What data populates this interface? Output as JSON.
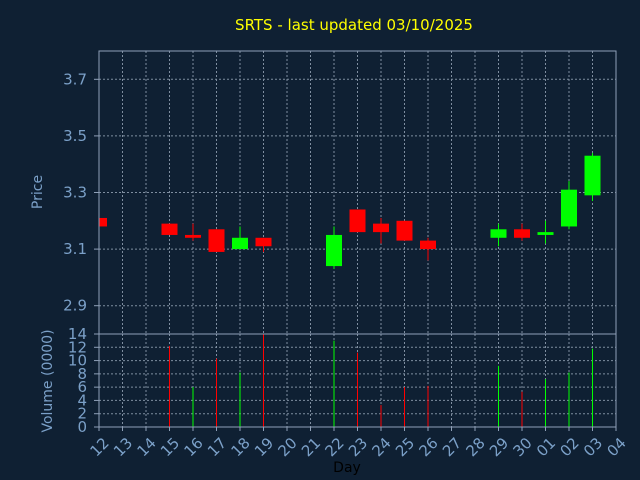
{
  "chart_data": [
    {
      "type": "candlestick",
      "title": "SRTS - last updated 03/10/2025",
      "ylabel": "Price",
      "ylim": [
        2.8,
        3.8
      ],
      "yticks": [
        "2.9",
        "3.1",
        "3.3",
        "3.5",
        "3.7"
      ],
      "grid": true,
      "x_tick_labels": [
        "12",
        "13",
        "14",
        "15",
        "16",
        "17",
        "18",
        "19",
        "20",
        "21",
        "22",
        "23",
        "24",
        "25",
        "26",
        "27",
        "28",
        "29",
        "30",
        "01",
        "02",
        "03",
        "04"
      ],
      "candles": [
        {
          "x": "12",
          "open": 3.21,
          "high": 3.21,
          "low": 3.18,
          "close": 3.18
        },
        {
          "x": "15",
          "open": 3.19,
          "high": 3.19,
          "low": 3.15,
          "close": 3.15
        },
        {
          "x": "16",
          "open": 3.15,
          "high": 3.19,
          "low": 3.13,
          "close": 3.14
        },
        {
          "x": "17",
          "open": 3.17,
          "high": 3.17,
          "low": 3.09,
          "close": 3.09
        },
        {
          "x": "18",
          "open": 3.1,
          "high": 3.18,
          "low": 3.1,
          "close": 3.14
        },
        {
          "x": "19",
          "open": 3.14,
          "high": 3.14,
          "low": 3.09,
          "close": 3.11
        },
        {
          "x": "22",
          "open": 3.04,
          "high": 3.18,
          "low": 3.03,
          "close": 3.15
        },
        {
          "x": "23",
          "open": 3.24,
          "high": 3.24,
          "low": 3.16,
          "close": 3.16
        },
        {
          "x": "24",
          "open": 3.19,
          "high": 3.21,
          "low": 3.12,
          "close": 3.16
        },
        {
          "x": "25",
          "open": 3.2,
          "high": 3.2,
          "low": 3.13,
          "close": 3.13
        },
        {
          "x": "26",
          "open": 3.13,
          "high": 3.14,
          "low": 3.06,
          "close": 3.1
        },
        {
          "x": "29",
          "open": 3.14,
          "high": 3.19,
          "low": 3.11,
          "close": 3.17
        },
        {
          "x": "30",
          "open": 3.17,
          "high": 3.19,
          "low": 3.13,
          "close": 3.14
        },
        {
          "x": "01",
          "open": 3.15,
          "high": 3.2,
          "low": 3.12,
          "close": 3.16
        },
        {
          "x": "02",
          "open": 3.18,
          "high": 3.34,
          "low": 3.17,
          "close": 3.31
        },
        {
          "x": "03",
          "open": 3.29,
          "high": 3.44,
          "low": 3.27,
          "close": 3.43
        }
      ]
    },
    {
      "type": "bar",
      "ylabel": "Volume (0000)",
      "xlabel": "Day",
      "ylim": [
        0,
        14
      ],
      "yticks": [
        "0",
        "2",
        "4",
        "6",
        "8",
        "10",
        "12",
        "14"
      ],
      "grid": true,
      "bars": [
        {
          "x": "15",
          "value": 12.2,
          "direction": "down"
        },
        {
          "x": "16",
          "value": 6.0,
          "direction": "up"
        },
        {
          "x": "17",
          "value": 10.3,
          "direction": "down"
        },
        {
          "x": "18",
          "value": 8.2,
          "direction": "up"
        },
        {
          "x": "19",
          "value": 14.0,
          "direction": "down"
        },
        {
          "x": "22",
          "value": 13.0,
          "direction": "up"
        },
        {
          "x": "23",
          "value": 11.2,
          "direction": "down"
        },
        {
          "x": "24",
          "value": 3.3,
          "direction": "down"
        },
        {
          "x": "25",
          "value": 6.0,
          "direction": "down"
        },
        {
          "x": "26",
          "value": 6.2,
          "direction": "down"
        },
        {
          "x": "29",
          "value": 9.2,
          "direction": "up"
        },
        {
          "x": "30",
          "value": 5.3,
          "direction": "down"
        },
        {
          "x": "01",
          "value": 7.2,
          "direction": "up"
        },
        {
          "x": "02",
          "value": 8.2,
          "direction": "up"
        },
        {
          "x": "03",
          "value": 11.8,
          "direction": "up"
        }
      ]
    }
  ],
  "colors": {
    "background": "#0f2033",
    "plot_background": "#0f2033",
    "grid": "#7f8ea0",
    "axis_text": "#7ba0c8",
    "title": "#ffff00",
    "xlabel": "#000000",
    "up": "#00ff00",
    "down": "#ff0000",
    "frame": "#8fa0b8"
  }
}
